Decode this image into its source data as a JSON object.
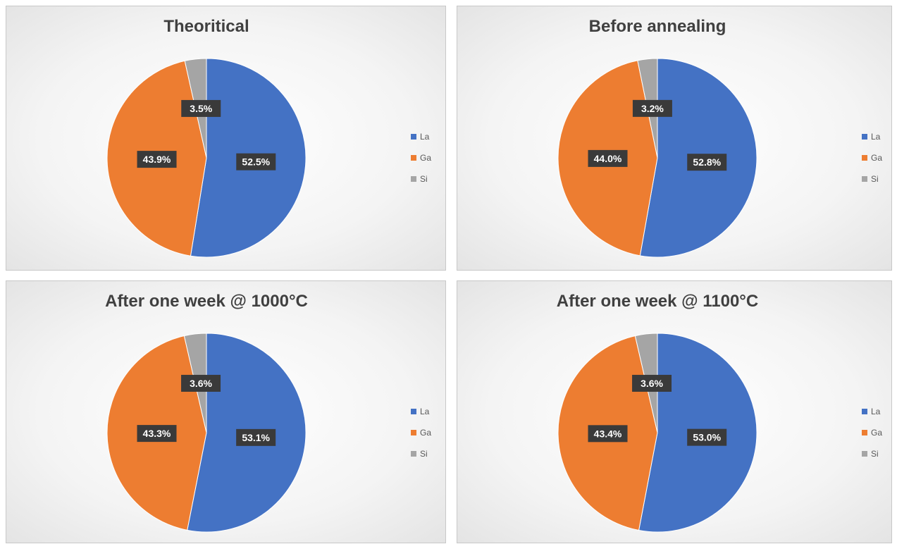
{
  "chart_data": [
    {
      "type": "pie",
      "title": "Theoritical",
      "categories": [
        "La",
        "Ga",
        "Si"
      ],
      "values": [
        52.5,
        43.9,
        3.5
      ],
      "value_labels": [
        "52.5%",
        "43.9%",
        "3.5%"
      ],
      "colors": [
        "#4472c4",
        "#ed7d31",
        "#a5a5a5"
      ],
      "legend": "right"
    },
    {
      "type": "pie",
      "title": "Before annealing",
      "categories": [
        "La",
        "Ga",
        "Si"
      ],
      "values": [
        52.8,
        44.0,
        3.2
      ],
      "value_labels": [
        "52.8%",
        "44.0%",
        "3.2%"
      ],
      "colors": [
        "#4472c4",
        "#ed7d31",
        "#a5a5a5"
      ],
      "legend": "right"
    },
    {
      "type": "pie",
      "title": "After one week @ 1000°C",
      "categories": [
        "La",
        "Ga",
        "Si"
      ],
      "values": [
        53.1,
        43.3,
        3.6
      ],
      "value_labels": [
        "53.1%",
        "43.3%",
        "3.6%"
      ],
      "colors": [
        "#4472c4",
        "#ed7d31",
        "#a5a5a5"
      ],
      "legend": "right"
    },
    {
      "type": "pie",
      "title": "After one week @ 1100°C",
      "categories": [
        "La",
        "Ga",
        "Si"
      ],
      "values": [
        53.0,
        43.4,
        3.6
      ],
      "value_labels": [
        "53.0%",
        "43.4%",
        "3.6%"
      ],
      "colors": [
        "#4472c4",
        "#ed7d31",
        "#a5a5a5"
      ],
      "legend": "right"
    }
  ]
}
